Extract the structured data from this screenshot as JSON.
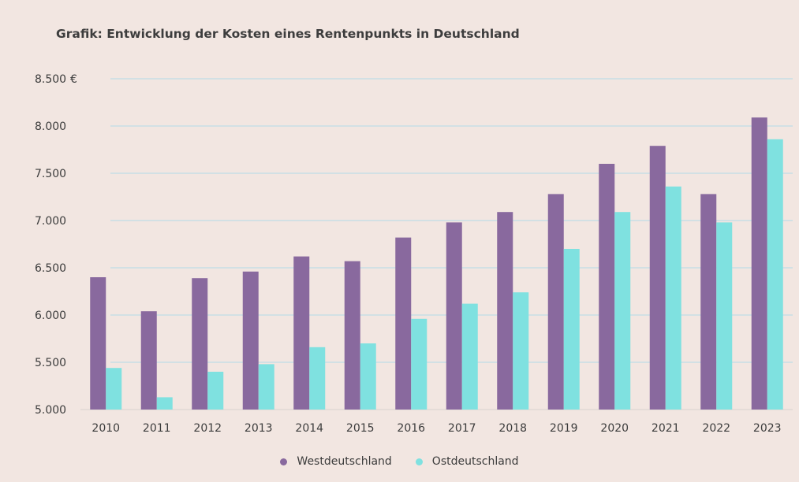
{
  "title": "Grafik: Entwicklung der Kosten eines Rentenpunkts in Deutschland",
  "colors": {
    "west": "#89699e",
    "ost": "#7fe1e0",
    "grid": "#b3dbe8"
  },
  "chart_data": {
    "type": "bar",
    "title": "Grafik: Entwicklung der Kosten eines Rentenpunkts in Deutschland",
    "xlabel": "",
    "ylabel": "",
    "unit": "€",
    "ylim": [
      5000,
      8500
    ],
    "yticks": [
      "5.000",
      "5.500",
      "6.000",
      "6.500",
      "7.000",
      "7.500",
      "8.000",
      "8.500"
    ],
    "ytick_values": [
      5000,
      5500,
      6000,
      6500,
      7000,
      7500,
      8000,
      8500
    ],
    "grid": true,
    "legend_position": "bottom",
    "categories": [
      "2010",
      "2011",
      "2012",
      "2013",
      "2014",
      "2015",
      "2016",
      "2017",
      "2018",
      "2019",
      "2020",
      "2021",
      "2022",
      "2023"
    ],
    "series": [
      {
        "name": "Westdeutschland",
        "values": [
          6400,
          6040,
          6390,
          6460,
          6620,
          6570,
          6820,
          6980,
          7090,
          7280,
          7600,
          7790,
          7280,
          8090
        ]
      },
      {
        "name": "Ostdeutschland",
        "values": [
          5440,
          5130,
          5400,
          5480,
          5660,
          5700,
          5960,
          6120,
          6240,
          6700,
          7090,
          7360,
          6980,
          7860
        ]
      }
    ]
  }
}
